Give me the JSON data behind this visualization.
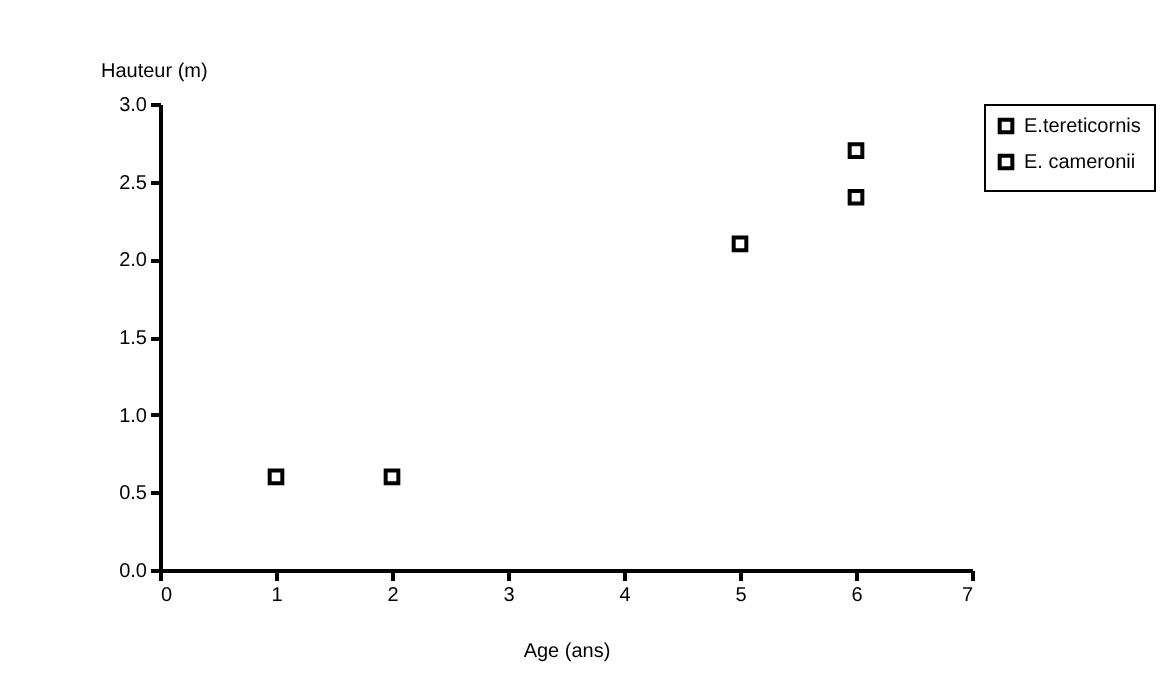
{
  "chart_data": {
    "type": "scatter",
    "xlabel": "Age (ans)",
    "ylabel": "Hauteur (m)",
    "xlim": [
      0,
      7
    ],
    "xticks": [
      0,
      1,
      2,
      3,
      4,
      5,
      6,
      7
    ],
    "ylim": [
      0,
      3
    ],
    "yticks": [
      {
        "value": 0,
        "label": "0.0"
      },
      {
        "value": 0.5,
        "label": "0.5"
      },
      {
        "value": 1,
        "label": "1.0"
      },
      {
        "value": 1.5,
        "label": "1.5"
      },
      {
        "value": 2,
        "label": "2.0"
      },
      {
        "value": 2.5,
        "label": "2.5"
      },
      {
        "value": 3,
        "label": "3.0"
      }
    ],
    "grid": false,
    "legend": "right",
    "marker": "square",
    "series": [
      {
        "name": "E.tereticornis",
        "color": "#000000",
        "x": [
          1,
          5,
          6
        ],
        "values": [
          0.6,
          2.1,
          2.4
        ]
      },
      {
        "name": "E. cameronii",
        "color": "#000000",
        "x": [
          2,
          6
        ],
        "values": [
          0.6,
          2.7
        ]
      }
    ]
  }
}
